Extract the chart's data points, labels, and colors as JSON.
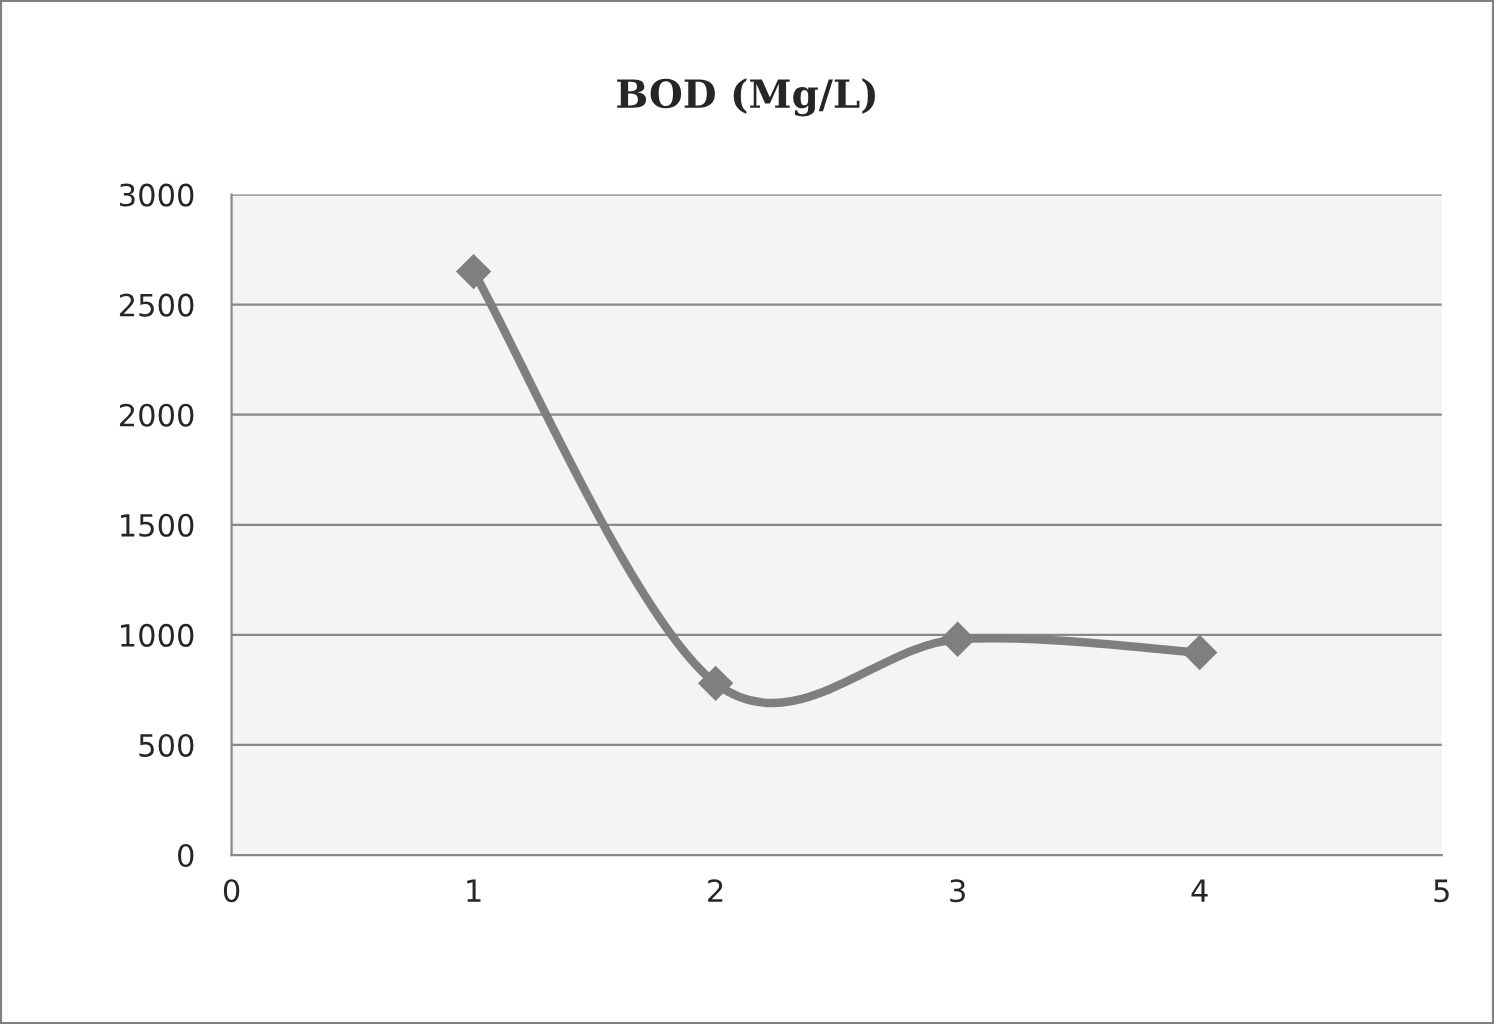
{
  "chart_data": {
    "type": "line",
    "title": "BOD (Mg/L)",
    "x": [
      1,
      2,
      3,
      4
    ],
    "series": [
      {
        "color": "#7f7f7f",
        "values": [
          2650,
          780,
          980,
          920
        ]
      }
    ],
    "xlim": [
      0,
      5
    ],
    "xticks": [
      0,
      1,
      2,
      3,
      4,
      5
    ],
    "ylim": [
      0,
      3000
    ],
    "yticks": [
      0,
      500,
      1000,
      1500,
      2000,
      2500,
      3000
    ],
    "grid": "y",
    "marker": "diamond",
    "line_style": "solid",
    "legend": false
  }
}
